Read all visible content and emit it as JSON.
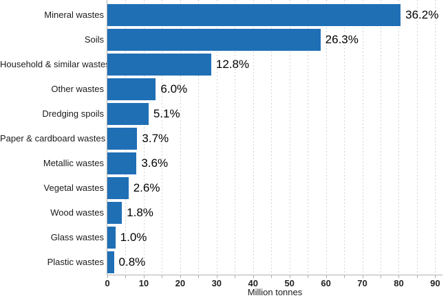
{
  "chart_data": {
    "type": "bar",
    "orientation": "horizontal",
    "title": "",
    "xlabel": "Million tonnes",
    "ylabel": "",
    "categories": [
      "Mineral wastes",
      "Soils",
      "Household & similar wastes",
      "Other wastes",
      "Dredging spoils",
      "Paper & cardboard wastes",
      "Metallic wastes",
      "Vegetal wastes",
      "Wood wastes",
      "Glass wastes",
      "Plastic wastes"
    ],
    "values_million_tonnes": [
      80.5,
      58.5,
      28.5,
      13.3,
      11.3,
      8.2,
      8.0,
      5.8,
      4.0,
      2.2,
      1.8
    ],
    "data_labels_percent": [
      "36.2%",
      "26.3%",
      "12.8%",
      "6.0%",
      "5.1%",
      "3.7%",
      "3.6%",
      "2.6%",
      "1.8%",
      "1.0%",
      "0.8%"
    ],
    "xlim": [
      0,
      92
    ],
    "x_ticks": [
      0,
      10,
      20,
      30,
      40,
      50,
      60,
      70,
      80,
      90
    ],
    "x_minor_step": 5,
    "grid": "vertical dashed gridlines every 5 units",
    "legend": "none",
    "colors": {
      "bar": "#1f6fb5",
      "gridline": "#d2d2d2",
      "axis_line": "#b0b0b0",
      "category_text": "#1a1a1a",
      "value_text": "#000000",
      "tick_text": "#222222"
    }
  }
}
